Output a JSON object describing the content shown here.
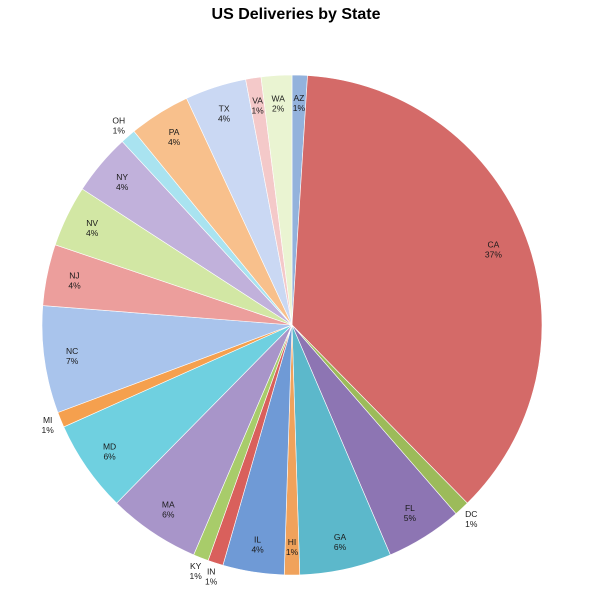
{
  "chart_data": {
    "type": "pie",
    "title": "US Deliveries by State",
    "start_angle_deg": 0,
    "direction": "clockwise",
    "slices": [
      {
        "label": "AZ",
        "value": 1,
        "pct_label": "1%",
        "color": "#93b2dc"
      },
      {
        "label": "CA",
        "value": 37,
        "pct_label": "37%",
        "color": "#d46a68"
      },
      {
        "label": "DC",
        "value": 1,
        "pct_label": "1%",
        "color": "#9cbb5a"
      },
      {
        "label": "FL",
        "value": 5,
        "pct_label": "5%",
        "color": "#8d75b3"
      },
      {
        "label": "GA",
        "value": 6,
        "pct_label": "6%",
        "color": "#5cb8cb"
      },
      {
        "label": "HI",
        "value": 1,
        "pct_label": "1%",
        "color": "#f0a25b"
      },
      {
        "label": "IL",
        "value": 4,
        "pct_label": "4%",
        "color": "#6f9ad6"
      },
      {
        "label": "IN",
        "value": 1,
        "pct_label": "1%",
        "color": "#d9605c"
      },
      {
        "label": "KY",
        "value": 1,
        "pct_label": "1%",
        "color": "#a8cc6a"
      },
      {
        "label": "MA",
        "value": 6,
        "pct_label": "6%",
        "color": "#a895c9"
      },
      {
        "label": "MD",
        "value": 6,
        "pct_label": "6%",
        "color": "#6fd0e0"
      },
      {
        "label": "MI",
        "value": 1,
        "pct_label": "1%",
        "color": "#f5a04e"
      },
      {
        "label": "NC",
        "value": 7,
        "pct_label": "7%",
        "color": "#a9c4ec"
      },
      {
        "label": "NJ",
        "value": 4,
        "pct_label": "4%",
        "color": "#ec9e9c"
      },
      {
        "label": "NV",
        "value": 4,
        "pct_label": "4%",
        "color": "#d2e7a4"
      },
      {
        "label": "NY",
        "value": 4,
        "pct_label": "4%",
        "color": "#c1b1db"
      },
      {
        "label": "OH",
        "value": 1,
        "pct_label": "1%",
        "color": "#a9e3f0"
      },
      {
        "label": "PA",
        "value": 4,
        "pct_label": "4%",
        "color": "#f8c08c"
      },
      {
        "label": "TX",
        "value": 4,
        "pct_label": "4%",
        "color": "#cad8f3"
      },
      {
        "label": "VA",
        "value": 1,
        "pct_label": "1%",
        "color": "#f4c9c9"
      },
      {
        "label": "WA",
        "value": 2,
        "pct_label": "2%",
        "color": "#eaf4d2"
      }
    ]
  }
}
